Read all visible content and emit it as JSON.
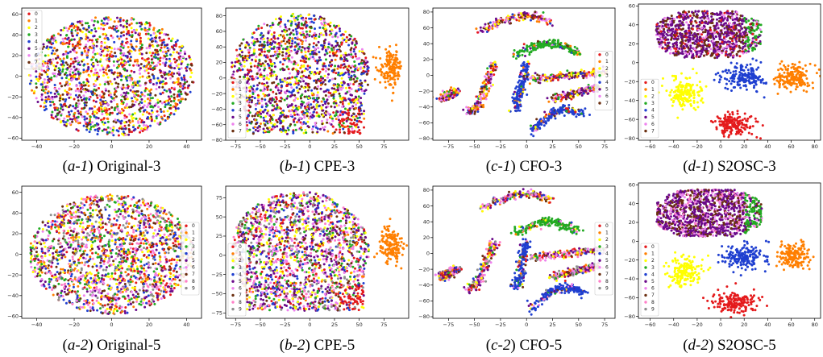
{
  "figure": {
    "type": "scatter",
    "palette": [
      "#e41a1c",
      "#ff7f00",
      "#ffff00",
      "#22aa22",
      "#1f3fd0",
      "#6a0a8a",
      "#ee82ee",
      "#6b2f10",
      "#ff7fc8",
      "#8e8e8e"
    ]
  },
  "chart_data": [
    {
      "id": "a1",
      "type": "scatter",
      "caption_tag": "(a-1)",
      "caption_name": "Original-3",
      "xlim": [
        -48,
        48
      ],
      "ylim": [
        -62,
        66
      ],
      "xticks": [
        -40,
        -20,
        0,
        20,
        40
      ],
      "yticks": [
        -60,
        -40,
        -20,
        0,
        20,
        40,
        60
      ],
      "legend": [
        "0",
        "1",
        "2",
        "3",
        "4",
        "5",
        "6",
        "7"
      ],
      "legend_loc": "upper left",
      "note": "uniformly mixed blob, all classes overlapping"
    },
    {
      "id": "b1",
      "type": "scatter",
      "caption_tag": "(b-1)",
      "caption_name": "CPE-3",
      "xlim": [
        -85,
        100
      ],
      "ylim": [
        -80,
        90
      ],
      "xticks": [
        -75,
        -50,
        -25,
        0,
        25,
        50,
        75
      ],
      "yticks": [
        -80,
        -60,
        -40,
        -20,
        0,
        20,
        40,
        60,
        80
      ],
      "legend": [
        "0",
        "1",
        "2",
        "3",
        "4",
        "5",
        "6",
        "7"
      ],
      "legend_loc": "lower left",
      "note": "mixed mass, class 1 separated cluster at right (x~80,y~10)"
    },
    {
      "id": "c1",
      "type": "scatter",
      "caption_tag": "(c-1)",
      "caption_name": "CFO-3",
      "xlim": [
        -90,
        85
      ],
      "ylim": [
        -82,
        85
      ],
      "xticks": [
        -75,
        -50,
        -25,
        0,
        25,
        50,
        75
      ],
      "yticks": [
        -80,
        -60,
        -40,
        -20,
        0,
        20,
        40,
        60,
        80
      ],
      "legend": [
        "0",
        "1",
        "2",
        "3",
        "4",
        "5",
        "6",
        "7"
      ],
      "legend_loc": "right",
      "note": "curved band structures; green and blue bands partially separated"
    },
    {
      "id": "d1",
      "type": "scatter",
      "caption_tag": "(d-1)",
      "caption_name": "S2OSC-3",
      "xlim": [
        -70,
        85
      ],
      "ylim": [
        -82,
        62
      ],
      "xticks": [
        -60,
        -40,
        -20,
        0,
        20,
        40,
        60,
        80
      ],
      "yticks": [
        -80,
        -60,
        -40,
        -20,
        0,
        20,
        40,
        60
      ],
      "legend": [
        "0",
        "1",
        "2",
        "3",
        "4",
        "5",
        "6",
        "7"
      ],
      "legend_loc": "lower left",
      "note": "clear clusters: orange (60,-15), yellow (-30,-35), blue (20,-15), red (12,-65), purple mass top"
    },
    {
      "id": "a2",
      "type": "scatter",
      "caption_tag": "(a-2)",
      "caption_name": "Original-5",
      "xlim": [
        -48,
        48
      ],
      "ylim": [
        -62,
        66
      ],
      "xticks": [
        -40,
        -20,
        0,
        20,
        40
      ],
      "yticks": [
        -60,
        -40,
        -20,
        0,
        20,
        40,
        60
      ],
      "legend": [
        "0",
        "1",
        "2",
        "3",
        "4",
        "5",
        "6",
        "7",
        "8",
        "9"
      ],
      "legend_loc": "right",
      "note": "uniformly mixed blob"
    },
    {
      "id": "b2",
      "type": "scatter",
      "caption_tag": "(b-2)",
      "caption_name": "CPE-5",
      "xlim": [
        -85,
        100
      ],
      "ylim": [
        -82,
        90
      ],
      "xticks": [
        -75,
        -50,
        -25,
        0,
        25,
        50,
        75
      ],
      "yticks": [
        -75,
        -50,
        -25,
        0,
        25,
        50,
        75
      ],
      "legend": [
        "0",
        "1",
        "2",
        "3",
        "4",
        "5",
        "6",
        "7",
        "8",
        "9"
      ],
      "legend_loc": "lower left",
      "note": "mixed mass, class 1 separated cluster at right"
    },
    {
      "id": "c2",
      "type": "scatter",
      "caption_tag": "(c-2)",
      "caption_name": "CFO-5",
      "xlim": [
        -90,
        85
      ],
      "ylim": [
        -82,
        85
      ],
      "xticks": [
        -75,
        -50,
        -25,
        0,
        25,
        50,
        75
      ],
      "yticks": [
        -80,
        -60,
        -40,
        -20,
        0,
        20,
        40,
        60,
        80
      ],
      "legend": [
        "0",
        "1",
        "2",
        "3",
        "4",
        "5",
        "6",
        "7",
        "8",
        "9"
      ],
      "legend_loc": "right",
      "note": "curved bands; green and blue bands separated"
    },
    {
      "id": "d2",
      "type": "scatter",
      "caption_tag": "(d-2)",
      "caption_name": "S2OSC-5",
      "xlim": [
        -70,
        85
      ],
      "ylim": [
        -82,
        62
      ],
      "xticks": [
        -60,
        -40,
        -20,
        0,
        20,
        40,
        60,
        80
      ],
      "yticks": [
        -80,
        -60,
        -40,
        -20,
        0,
        20,
        40,
        60
      ],
      "legend": [
        "0",
        "1",
        "2",
        "3",
        "4",
        "5",
        "6",
        "7",
        "8",
        "9"
      ],
      "legend_loc": "lower left",
      "note": "clear clusters for orange, yellow, blue, red; mixed mass top"
    }
  ]
}
